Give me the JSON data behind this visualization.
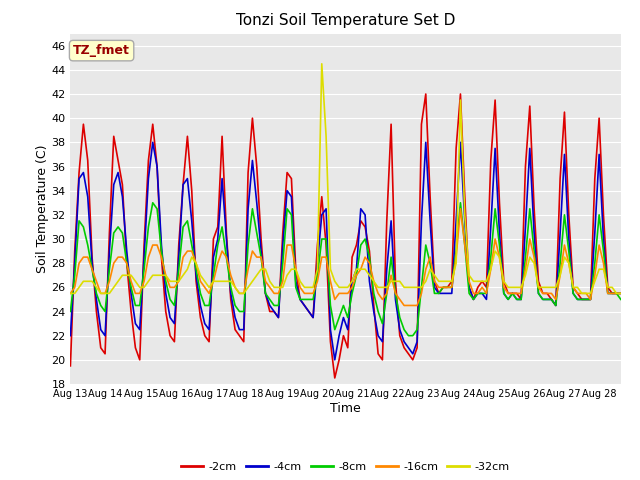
{
  "title": "Tonzi Soil Temperature Set D",
  "xlabel": "Time",
  "ylabel": "Soil Temperature (C)",
  "ylim": [
    18,
    47
  ],
  "yticks": [
    18,
    20,
    22,
    24,
    26,
    28,
    30,
    32,
    34,
    36,
    38,
    40,
    42,
    44,
    46
  ],
  "xlim": [
    0,
    375
  ],
  "xtick_positions": [
    0,
    24,
    48,
    72,
    96,
    120,
    144,
    168,
    192,
    216,
    240,
    264,
    288,
    312,
    336,
    360
  ],
  "xtick_labels": [
    "Aug 13",
    "Aug 14",
    "Aug 15",
    "Aug 16",
    "Aug 17",
    "Aug 18",
    "Aug 19",
    "Aug 20",
    "Aug 21",
    "Aug 22",
    "Aug 23",
    "Aug 24",
    "Aug 25",
    "Aug 26",
    "Aug 27",
    "Aug 28"
  ],
  "label_box_text": "TZ_fmet",
  "label_box_color": "#ffffcc",
  "label_box_border": "#aaaaaa",
  "label_box_text_color": "#990000",
  "fig_bg_color": "#ffffff",
  "plot_bg_color": "#e8e8e8",
  "grid_color": "#ffffff",
  "series": [
    {
      "label": "-2cm",
      "color": "#dd0000",
      "linewidth": 1.2,
      "values": [
        19.5,
        29.0,
        35.5,
        39.5,
        36.5,
        28.5,
        24.0,
        21.0,
        20.5,
        30.5,
        38.5,
        36.5,
        34.5,
        28.0,
        24.0,
        21.0,
        20.0,
        29.5,
        36.5,
        39.5,
        36.0,
        28.5,
        24.0,
        22.0,
        21.5,
        29.5,
        34.5,
        38.5,
        34.0,
        26.5,
        23.5,
        22.0,
        21.5,
        30.0,
        31.0,
        38.5,
        30.5,
        25.0,
        22.5,
        22.0,
        21.5,
        35.5,
        40.0,
        36.0,
        30.0,
        25.5,
        24.0,
        24.0,
        23.5,
        30.5,
        35.5,
        35.0,
        27.5,
        25.0,
        24.5,
        24.0,
        23.5,
        29.5,
        33.5,
        29.5,
        21.5,
        18.5,
        20.0,
        22.0,
        21.0,
        28.5,
        29.5,
        31.5,
        31.0,
        29.0,
        24.5,
        20.5,
        20.0,
        31.5,
        39.5,
        26.5,
        22.0,
        21.0,
        20.5,
        20.0,
        21.0,
        39.5,
        42.0,
        33.5,
        26.5,
        25.5,
        26.0,
        26.0,
        26.5,
        37.5,
        42.0,
        33.5,
        26.0,
        25.0,
        26.0,
        26.5,
        26.0,
        36.5,
        41.5,
        33.0,
        26.5,
        25.5,
        25.5,
        25.5,
        25.0,
        36.0,
        41.0,
        32.5,
        26.5,
        25.5,
        25.5,
        25.0,
        24.5,
        35.0,
        40.5,
        32.0,
        26.0,
        25.5,
        25.0,
        25.0,
        25.0,
        35.0,
        40.0,
        32.0,
        26.0,
        25.5,
        25.5,
        25.5
      ]
    },
    {
      "label": "-4cm",
      "color": "#0000cc",
      "linewidth": 1.2,
      "values": [
        22.0,
        28.0,
        35.0,
        35.5,
        33.5,
        28.0,
        25.0,
        22.5,
        22.0,
        29.0,
        34.5,
        35.5,
        33.5,
        29.0,
        25.5,
        23.0,
        22.5,
        28.5,
        35.0,
        38.0,
        36.0,
        29.5,
        25.5,
        23.5,
        23.0,
        28.5,
        34.5,
        35.0,
        31.5,
        27.0,
        24.5,
        23.0,
        22.5,
        28.5,
        30.0,
        35.0,
        30.0,
        25.5,
        23.5,
        22.5,
        22.5,
        32.5,
        36.5,
        33.0,
        29.0,
        25.5,
        24.5,
        24.0,
        23.5,
        29.5,
        34.0,
        33.5,
        26.5,
        25.0,
        24.5,
        24.0,
        23.5,
        28.0,
        32.0,
        32.5,
        22.5,
        20.0,
        22.0,
        23.5,
        22.5,
        26.5,
        27.5,
        32.5,
        32.0,
        26.5,
        24.0,
        22.0,
        21.5,
        27.5,
        31.5,
        25.0,
        22.5,
        21.5,
        21.0,
        20.5,
        21.5,
        31.5,
        38.0,
        31.5,
        26.0,
        25.5,
        25.5,
        25.5,
        25.5,
        31.5,
        38.0,
        31.5,
        26.0,
        25.0,
        25.5,
        25.5,
        25.0,
        31.0,
        37.5,
        30.5,
        25.5,
        25.0,
        25.5,
        25.0,
        25.0,
        31.0,
        37.5,
        30.5,
        25.5,
        25.0,
        25.0,
        25.0,
        24.5,
        30.5,
        37.0,
        30.0,
        25.5,
        25.0,
        25.0,
        25.0,
        25.0,
        30.5,
        37.0,
        30.0,
        25.5,
        25.5,
        25.5,
        25.5
      ]
    },
    {
      "label": "-8cm",
      "color": "#00cc00",
      "linewidth": 1.2,
      "values": [
        24.0,
        27.0,
        31.5,
        31.0,
        29.5,
        27.5,
        25.5,
        24.5,
        24.0,
        27.5,
        30.5,
        31.0,
        30.5,
        28.0,
        26.0,
        24.5,
        24.5,
        27.5,
        31.0,
        33.0,
        32.5,
        29.0,
        26.5,
        25.0,
        24.5,
        27.5,
        31.0,
        31.5,
        29.5,
        27.5,
        25.5,
        24.5,
        24.5,
        27.0,
        29.5,
        31.0,
        28.5,
        26.0,
        24.5,
        24.0,
        24.0,
        29.5,
        32.5,
        30.5,
        28.5,
        25.5,
        25.0,
        24.5,
        24.5,
        28.0,
        32.5,
        32.0,
        26.0,
        25.0,
        25.0,
        25.0,
        25.0,
        27.0,
        30.0,
        30.0,
        24.5,
        22.5,
        23.5,
        24.5,
        23.5,
        25.5,
        27.0,
        29.5,
        30.0,
        28.5,
        25.5,
        24.0,
        23.0,
        25.5,
        28.5,
        25.5,
        23.5,
        22.5,
        22.0,
        22.0,
        22.5,
        26.0,
        29.5,
        28.0,
        25.5,
        25.5,
        26.0,
        26.0,
        26.0,
        29.0,
        33.0,
        29.5,
        25.5,
        25.0,
        25.5,
        25.5,
        25.5,
        28.5,
        32.5,
        29.5,
        25.5,
        25.0,
        25.5,
        25.0,
        25.0,
        28.5,
        32.5,
        29.0,
        25.5,
        25.0,
        25.0,
        25.0,
        24.5,
        28.0,
        32.0,
        29.0,
        25.5,
        25.0,
        25.0,
        25.0,
        25.0,
        28.0,
        32.0,
        29.0,
        25.5,
        25.5,
        25.5,
        25.0
      ]
    },
    {
      "label": "-16cm",
      "color": "#ff8800",
      "linewidth": 1.2,
      "values": [
        25.5,
        26.0,
        28.0,
        28.5,
        28.5,
        27.5,
        26.5,
        25.5,
        25.5,
        26.5,
        28.0,
        28.5,
        28.5,
        28.0,
        26.5,
        25.5,
        25.5,
        26.5,
        28.5,
        29.5,
        29.5,
        28.5,
        27.0,
        26.0,
        26.0,
        26.5,
        28.5,
        29.0,
        29.0,
        28.0,
        26.5,
        26.0,
        25.5,
        26.5,
        28.0,
        29.0,
        28.5,
        27.0,
        26.0,
        25.5,
        25.5,
        27.5,
        29.0,
        28.5,
        28.5,
        26.5,
        26.0,
        25.5,
        25.5,
        26.5,
        29.5,
        29.5,
        27.5,
        26.0,
        25.5,
        25.5,
        25.5,
        26.5,
        28.5,
        28.5,
        26.5,
        25.0,
        25.5,
        25.5,
        25.5,
        26.0,
        27.0,
        27.5,
        28.5,
        28.0,
        26.5,
        25.5,
        25.0,
        25.5,
        27.0,
        25.5,
        25.0,
        24.5,
        24.5,
        24.5,
        24.5,
        25.5,
        27.5,
        28.5,
        26.5,
        26.0,
        26.0,
        26.0,
        26.0,
        28.5,
        32.5,
        29.5,
        26.5,
        25.5,
        25.5,
        26.0,
        25.5,
        27.5,
        30.0,
        28.5,
        26.0,
        25.5,
        25.5,
        25.5,
        25.5,
        27.5,
        30.0,
        28.5,
        26.0,
        25.5,
        25.5,
        25.5,
        25.0,
        27.0,
        29.5,
        28.0,
        26.0,
        25.5,
        25.5,
        25.5,
        25.0,
        27.0,
        29.5,
        28.0,
        25.5,
        25.5,
        25.5,
        25.5
      ]
    },
    {
      "label": "-32cm",
      "color": "#dddd00",
      "linewidth": 1.2,
      "values": [
        25.5,
        25.5,
        26.0,
        26.5,
        26.5,
        26.5,
        26.0,
        25.5,
        25.5,
        25.5,
        26.0,
        26.5,
        27.0,
        27.0,
        27.0,
        26.5,
        26.0,
        26.0,
        26.5,
        27.0,
        27.0,
        27.0,
        27.0,
        26.5,
        26.5,
        26.5,
        27.0,
        27.5,
        28.5,
        28.0,
        27.0,
        26.5,
        26.0,
        26.5,
        26.5,
        26.5,
        26.5,
        26.5,
        26.0,
        25.5,
        25.5,
        26.0,
        26.5,
        27.0,
        27.5,
        27.5,
        26.5,
        26.0,
        26.0,
        26.0,
        27.0,
        27.5,
        27.5,
        26.5,
        26.0,
        26.0,
        26.0,
        27.5,
        44.5,
        38.5,
        27.5,
        26.5,
        26.0,
        26.0,
        26.0,
        26.5,
        27.5,
        27.5,
        27.5,
        27.0,
        26.5,
        26.0,
        26.0,
        26.0,
        26.5,
        26.5,
        26.5,
        26.0,
        26.0,
        26.0,
        26.0,
        26.0,
        26.5,
        27.5,
        27.0,
        26.5,
        26.5,
        26.5,
        26.5,
        28.0,
        41.5,
        32.0,
        27.0,
        26.5,
        26.5,
        26.5,
        26.5,
        27.5,
        29.0,
        28.5,
        26.5,
        26.0,
        26.0,
        26.0,
        26.0,
        27.0,
        28.5,
        28.0,
        26.0,
        26.0,
        26.0,
        26.0,
        26.0,
        27.0,
        28.5,
        28.0,
        26.0,
        26.0,
        25.5,
        25.5,
        25.5,
        26.5,
        27.5,
        27.5,
        26.0,
        26.0,
        25.5,
        25.5
      ]
    }
  ]
}
